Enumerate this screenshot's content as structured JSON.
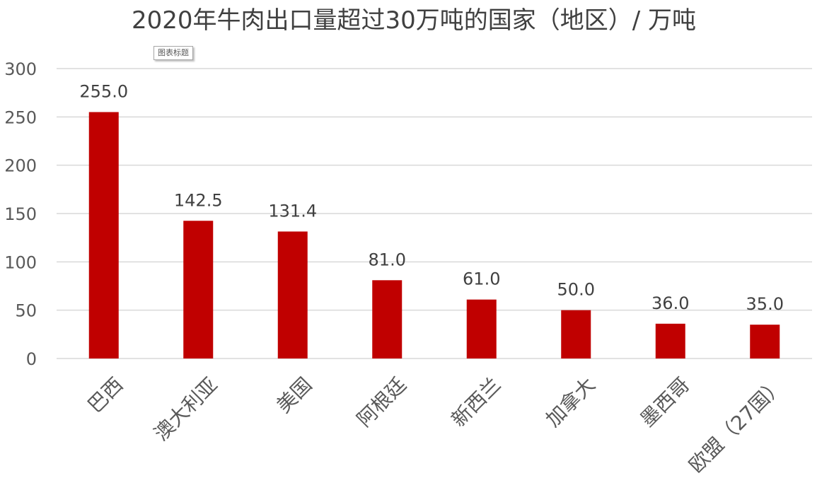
{
  "chart_data": {
    "type": "bar",
    "title": "2020年牛肉出口量超过30万吨的国家（地区）/ 万吨",
    "categories": [
      "巴西",
      "澳大利亚",
      "美国",
      "阿根廷",
      "新西兰",
      "加拿大",
      "墨西哥",
      "欧盟（27国）"
    ],
    "values": [
      255.0,
      142.5,
      131.4,
      81.0,
      61.0,
      50.0,
      36.0,
      35.0
    ],
    "data_labels": [
      "255.0",
      "142.5",
      "131.4",
      "81.0",
      "61.0",
      "50.0",
      "36.0",
      "35.0"
    ],
    "y_ticks": [
      "0",
      "50",
      "100",
      "150",
      "200",
      "250",
      "300"
    ],
    "ylim": [
      0,
      300
    ],
    "grid": true,
    "bar_color": "#c00000",
    "xlabel": "",
    "ylabel": ""
  },
  "tooltip": {
    "text": "图表标题"
  }
}
